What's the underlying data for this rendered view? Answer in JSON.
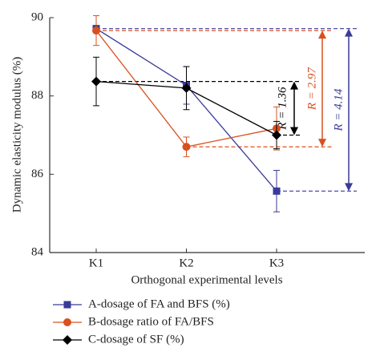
{
  "chart_data": {
    "type": "line",
    "x_label": "Orthogonal experimental levels",
    "y_label": "Dynamic elasticity modulus (%)",
    "categories": [
      "K1",
      "K2",
      "K3"
    ],
    "ylim": [
      84,
      90
    ],
    "yticks": [
      84,
      86,
      88,
      90
    ],
    "series": [
      {
        "name": "A-dosage of FA and BFS (%)",
        "color": "#3a3a9a",
        "marker": "square",
        "values": [
          89.72,
          88.27,
          85.57
        ],
        "errors": [
          0.08,
          0.48,
          0.53
        ]
      },
      {
        "name": "B-dosage ratio of FA/BFS",
        "color": "#d9501e",
        "marker": "circle",
        "values": [
          89.67,
          86.7,
          87.17
        ],
        "errors": [
          0.38,
          0.25,
          0.55
        ]
      },
      {
        "name": "C-dosage of SF (%)",
        "color": "#000000",
        "marker": "diamond",
        "values": [
          88.37,
          88.2,
          87.0
        ],
        "errors": [
          0.62,
          0.55,
          0.35
        ]
      }
    ],
    "annotations": [
      {
        "text": "R = 4.14",
        "series": 0
      },
      {
        "text": "R = 2.97",
        "series": 1
      },
      {
        "text": "R = 1.36",
        "series": 2
      }
    ]
  }
}
